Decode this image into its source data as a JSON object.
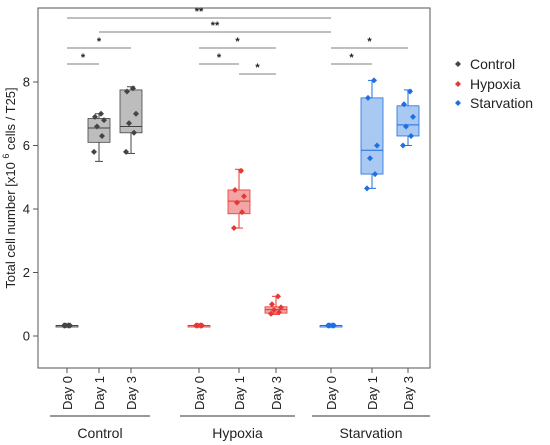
{
  "chart_data": {
    "type": "box",
    "ylabel": "Total cell number [x10 6 cells / T25]",
    "ylabel_parts": {
      "prefix": "Total cell number [x10",
      "superscript": "6",
      "suffix": " cells / T25]"
    },
    "ylim": [
      -1,
      10.5
    ],
    "yticks": [
      0,
      2,
      4,
      6,
      8
    ],
    "grid": false,
    "legend_position": "right",
    "categories": [
      "Day 0",
      "Day 1",
      "Day 3",
      "Day 0",
      "Day 1",
      "Day 3",
      "Day 0",
      "Day 1",
      "Day 3"
    ],
    "groups": [
      "Control",
      "Hypoxia",
      "Starvation"
    ],
    "series": [
      {
        "name": "Control",
        "color": "#444444",
        "fill": "#bdbdbd",
        "boxes": [
          {
            "category": "Day 0",
            "min": 0.33,
            "q1": 0.33,
            "median": 0.33,
            "q3": 0.33,
            "max": 0.33,
            "points": [
              0.33,
              0.33,
              0.33,
              0.33,
              0.33,
              0.33
            ]
          },
          {
            "category": "Day 1",
            "min": 5.5,
            "q1": 6.1,
            "median": 6.55,
            "q3": 6.85,
            "max": 7.0,
            "points": [
              5.8,
              6.3,
              6.6,
              6.8,
              6.9,
              7.0
            ]
          },
          {
            "category": "Day 3",
            "min": 5.75,
            "q1": 6.4,
            "median": 6.6,
            "q3": 7.75,
            "max": 7.85,
            "points": [
              5.8,
              6.4,
              6.7,
              7.0,
              7.7,
              7.8
            ]
          }
        ]
      },
      {
        "name": "Hypoxia",
        "color": "#e53935",
        "fill": "#f3a5a5",
        "boxes": [
          {
            "category": "Day 0",
            "min": 0.33,
            "q1": 0.33,
            "median": 0.33,
            "q3": 0.33,
            "max": 0.33,
            "points": [
              0.33,
              0.33,
              0.33,
              0.33,
              0.33,
              0.33
            ]
          },
          {
            "category": "Day 1",
            "min": 3.4,
            "q1": 3.85,
            "median": 4.25,
            "q3": 4.6,
            "max": 5.25,
            "points": [
              3.4,
              3.9,
              4.2,
              4.4,
              4.6,
              5.2
            ]
          },
          {
            "category": "Day 3",
            "min": 0.68,
            "q1": 0.72,
            "median": 0.83,
            "q3": 0.92,
            "max": 1.25,
            "points": [
              0.7,
              0.75,
              0.82,
              0.9,
              1.0,
              1.25
            ]
          }
        ]
      },
      {
        "name": "Starvation",
        "color": "#1e6fe0",
        "fill": "#a9c8f2",
        "boxes": [
          {
            "category": "Day 0",
            "min": 0.33,
            "q1": 0.33,
            "median": 0.33,
            "q3": 0.33,
            "max": 0.33,
            "points": [
              0.33,
              0.33,
              0.33,
              0.33,
              0.33,
              0.33
            ]
          },
          {
            "category": "Day 1",
            "min": 4.65,
            "q1": 5.1,
            "median": 5.85,
            "q3": 7.5,
            "max": 8.05,
            "points": [
              4.65,
              5.1,
              5.6,
              6.0,
              7.5,
              8.05
            ]
          },
          {
            "category": "Day 3",
            "min": 6.0,
            "q1": 6.3,
            "median": 6.65,
            "q3": 7.25,
            "max": 7.75,
            "points": [
              6.0,
              6.3,
              6.6,
              6.9,
              7.3,
              7.7
            ]
          }
        ]
      }
    ],
    "significance": [
      {
        "from": 0,
        "to": 1,
        "label": "*"
      },
      {
        "from": 0,
        "to": 2,
        "label": "*"
      },
      {
        "from": 0,
        "to": 6,
        "label": "**"
      },
      {
        "from": 1,
        "to": 6,
        "label": "**"
      },
      {
        "from": 3,
        "to": 4,
        "label": "*"
      },
      {
        "from": 3,
        "to": 5,
        "label": "*"
      },
      {
        "from": 4,
        "to": 5,
        "label": "*"
      },
      {
        "from": 6,
        "to": 7,
        "label": "*"
      },
      {
        "from": 6,
        "to": 8,
        "label": "*"
      }
    ]
  }
}
